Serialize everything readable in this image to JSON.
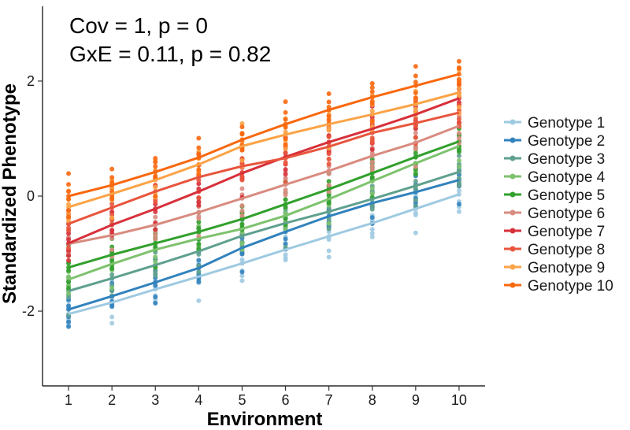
{
  "chart_data": {
    "type": "line",
    "title": "",
    "xlabel": "Environment",
    "ylabel": "Standardized Phenotype",
    "annotations": [
      "Cov = 1, p = 0",
      "GxE = 0.11, p = 0.82"
    ],
    "x": [
      1,
      2,
      3,
      4,
      5,
      6,
      7,
      8,
      9,
      10
    ],
    "xlim": [
      0.4,
      10.6
    ],
    "ylim": [
      -3.3,
      3.3
    ],
    "x_ticks": [
      "1",
      "2",
      "3",
      "4",
      "5",
      "6",
      "7",
      "8",
      "9",
      "10"
    ],
    "y_ticks": [
      "-2",
      "0",
      "2"
    ],
    "y_tick_values": [
      -2,
      0,
      2
    ],
    "grid": false,
    "legend_position": "right",
    "series": [
      {
        "name": "Genotype 1",
        "color": "#9ecae1",
        "values": [
          -2.05,
          -1.85,
          -1.62,
          -1.4,
          -1.17,
          -0.93,
          -0.7,
          -0.47,
          -0.22,
          0.03
        ]
      },
      {
        "name": "Genotype 2",
        "color": "#3182bd",
        "values": [
          -1.97,
          -1.74,
          -1.5,
          -1.25,
          -0.9,
          -0.62,
          -0.35,
          -0.12,
          0.07,
          0.28
        ]
      },
      {
        "name": "Genotype 3",
        "color": "#5fa08e",
        "values": [
          -1.65,
          -1.43,
          -1.2,
          -0.96,
          -0.69,
          -0.47,
          -0.27,
          -0.05,
          0.18,
          0.42
        ]
      },
      {
        "name": "Genotype 4",
        "color": "#7ec26e",
        "values": [
          -1.45,
          -1.18,
          -0.93,
          -0.74,
          -0.57,
          -0.34,
          -0.05,
          0.26,
          0.57,
          0.87
        ]
      },
      {
        "name": "Genotype 5",
        "color": "#31a02c",
        "values": [
          -1.24,
          -1.02,
          -0.82,
          -0.62,
          -0.4,
          -0.14,
          0.12,
          0.4,
          0.68,
          0.95
        ]
      },
      {
        "name": "Genotype 6",
        "color": "#d98b80",
        "values": [
          -0.83,
          -0.68,
          -0.5,
          -0.28,
          -0.04,
          0.2,
          0.44,
          0.7,
          0.93,
          1.22
        ]
      },
      {
        "name": "Genotype 7",
        "color": "#d7303a",
        "values": [
          -0.82,
          -0.5,
          -0.22,
          0.08,
          0.4,
          0.68,
          0.94,
          1.17,
          1.42,
          1.7
        ]
      },
      {
        "name": "Genotype 8",
        "color": "#e8553d",
        "values": [
          -0.48,
          -0.2,
          0.08,
          0.33,
          0.52,
          0.66,
          0.86,
          1.1,
          1.27,
          1.45
        ]
      },
      {
        "name": "Genotype 9",
        "color": "#fba347",
        "values": [
          -0.19,
          0.04,
          0.28,
          0.55,
          0.87,
          1.07,
          1.25,
          1.42,
          1.6,
          1.8
        ]
      },
      {
        "name": "Genotype 10",
        "color": "#f8680f",
        "values": [
          0.0,
          0.19,
          0.42,
          0.67,
          0.98,
          1.25,
          1.5,
          1.72,
          1.92,
          2.12
        ]
      }
    ]
  }
}
